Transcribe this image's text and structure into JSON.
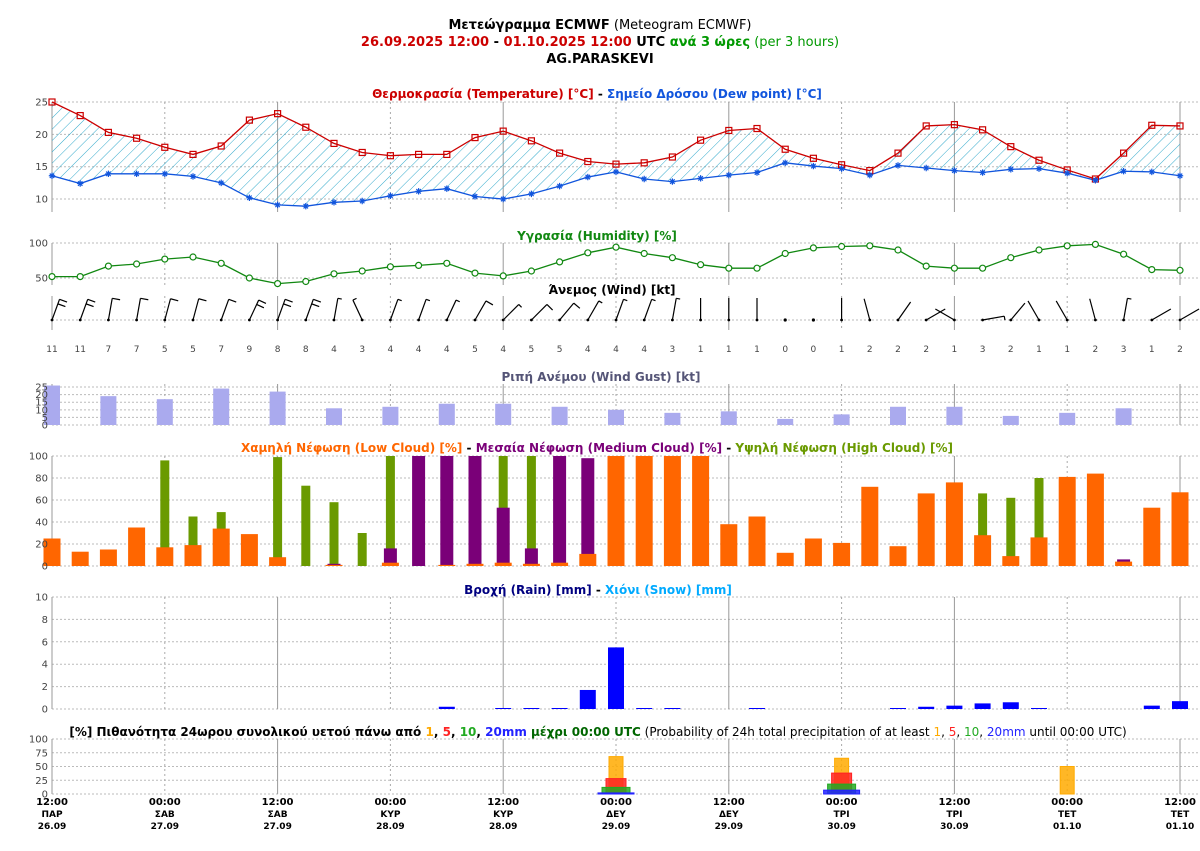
{
  "header": {
    "title_bold": "Μετεώγραμμα ECMWF",
    "title_rest": " (Meteogram ECMWF)",
    "date_start": "26.09.2025 12:00",
    "date_sep": " - ",
    "date_end": "01.10.2025 12:00",
    "utc": " UTC ",
    "step_bold": "ανά 3 ώρες",
    "step_rest": " (per 3 hours)",
    "location": "AG.PARASKEVI"
  },
  "panel_titles": {
    "temp_a": "Θερμοκρασία (Temperature) [°C]",
    "temp_sep": " - ",
    "temp_b": "Σημείο Δρόσου (Dew point) [°C]",
    "humidity": "Υγρασία (Humidity) [%]",
    "wind": "Άνεμος (Wind) [kt]",
    "gust": "Ριπή Ανέμου (Wind Gust) [kt]",
    "cloud_a": "Χαμηλή Νέφωση (Low Cloud) [%]",
    "cloud_sep": " - ",
    "cloud_b": "Μεσαία Νέφωση (Medium Cloud) [%]",
    "cloud_c": "Υψηλή Νέφωση (High Cloud) [%]",
    "rain_a": "Βροχή (Rain) [mm]",
    "rain_sep": " - ",
    "rain_b": "Χιόνι (Snow) [mm]",
    "prob_a": "[%] Πιθανότητα 24ωρου συνολικού υετού πάνω από ",
    "prob_t1": "1",
    "prob_t5": "5",
    "prob_t10": "10",
    "prob_t20": "20mm",
    "prob_b": " μέχρι 00:00 UTC",
    "prob_c": " (Probability of 24h total precipitation of at least ",
    "prob_d": " until 00:00 UTC)",
    "comma": ", "
  },
  "colors": {
    "temperature": "#cc0000",
    "dew_point": "#1155dd",
    "humidity": "#118811",
    "gust": "#aaaaee",
    "low_cloud": "#ff6600",
    "medium_cloud": "#7a0078",
    "high_cloud": "#6a9a00",
    "rain": "#0000ff",
    "snow": "#00aaff",
    "title_dates": "#cc0000",
    "title_step": "#009900",
    "title_gust": "#555577",
    "title_rain": "#000080",
    "prob_1": "#ffaa00",
    "prob_5": "#ff2222",
    "prob_10": "#22aa22",
    "prob_20": "#2222ff"
  },
  "chart_data": {
    "type": "line",
    "time_labels": [
      {
        "time": "12:00",
        "day": "ΠΑΡ",
        "date": "26.09"
      },
      {
        "time": "00:00",
        "day": "ΣΑΒ",
        "date": "27.09"
      },
      {
        "time": "12:00",
        "day": "ΣΑΒ",
        "date": "27.09"
      },
      {
        "time": "00:00",
        "day": "ΚΥΡ",
        "date": "28.09"
      },
      {
        "time": "12:00",
        "day": "ΚΥΡ",
        "date": "28.09"
      },
      {
        "time": "00:00",
        "day": "ΔΕΥ",
        "date": "29.09"
      },
      {
        "time": "12:00",
        "day": "ΔΕΥ",
        "date": "29.09"
      },
      {
        "time": "00:00",
        "day": "ΤΡΙ",
        "date": "30.09"
      },
      {
        "time": "12:00",
        "day": "ΤΡΙ",
        "date": "30.09"
      },
      {
        "time": "00:00",
        "day": "ΤΕΤ",
        "date": "01.10"
      },
      {
        "time": "12:00",
        "day": "ΤΕΤ",
        "date": "01.10"
      }
    ],
    "temperature": [
      25,
      22.9,
      20.3,
      19.4,
      18,
      16.9,
      18.2,
      22.2,
      23.2,
      21.1,
      18.6,
      17.2,
      16.7,
      16.9,
      16.9,
      19.5,
      20.5,
      19,
      17.1,
      15.8,
      15.4,
      15.6,
      16.5,
      19.1,
      20.6,
      20.9,
      17.7,
      16.3,
      15.3,
      14.4,
      17.1,
      21.3,
      21.5,
      20.7,
      18.1,
      16,
      14.5,
      13.1,
      17.1,
      21.4,
      21.3
    ],
    "dew_point": [
      13.6,
      12.4,
      13.9,
      13.9,
      13.9,
      13.5,
      12.5,
      10.2,
      9.1,
      8.9,
      9.5,
      9.7,
      10.5,
      11.2,
      11.6,
      10.4,
      10,
      10.8,
      12,
      13.4,
      14.2,
      13.1,
      12.7,
      13.2,
      13.7,
      14.1,
      15.6,
      15.1,
      14.7,
      13.7,
      15.2,
      14.8,
      14.4,
      14.1,
      14.6,
      14.7,
      14,
      12.9,
      14.3,
      14.2,
      13.6
    ],
    "humidity": [
      52,
      52,
      67,
      70,
      77,
      80,
      71,
      50,
      42,
      45,
      56,
      60,
      66,
      68,
      71,
      57,
      53,
      60,
      73,
      86,
      94,
      85,
      79,
      69,
      64,
      64,
      85,
      93,
      95,
      96,
      90,
      67,
      64,
      64,
      79,
      90,
      96,
      98,
      84,
      62,
      61
    ],
    "wind_speed": [
      11,
      11,
      7,
      7,
      5,
      5,
      7,
      9,
      8,
      8,
      4,
      3,
      4,
      4,
      4,
      5,
      4,
      5,
      5,
      4,
      4,
      4,
      3,
      1,
      1,
      1,
      0,
      0,
      1,
      2,
      2,
      2,
      1,
      3,
      2,
      1,
      1,
      2,
      3,
      1,
      2
    ],
    "wind_dir_deg": [
      20,
      20,
      10,
      10,
      15,
      15,
      20,
      25,
      20,
      20,
      10,
      335,
      20,
      20,
      25,
      30,
      45,
      45,
      40,
      30,
      20,
      20,
      10,
      0,
      0,
      0,
      0,
      0,
      0,
      345,
      35,
      60,
      300,
      80,
      40,
      330,
      330,
      345,
      10,
      60,
      60
    ],
    "gust": [
      26,
      null,
      19,
      null,
      17,
      null,
      24,
      null,
      22,
      null,
      11,
      null,
      12,
      null,
      14,
      null,
      14,
      null,
      12,
      null,
      10,
      null,
      8,
      null,
      9,
      null,
      4,
      null,
      7,
      null,
      12,
      null,
      12,
      null,
      6,
      null,
      8,
      null,
      11,
      null,
      null
    ],
    "low_cloud": [
      25,
      13,
      15,
      35,
      17,
      19,
      34,
      29,
      8,
      0,
      1,
      0,
      3,
      0,
      1,
      2,
      3,
      2,
      3,
      11,
      100,
      100,
      100,
      100,
      38,
      45,
      12,
      25,
      21,
      72,
      18,
      66,
      76,
      28,
      9,
      26,
      81,
      84,
      4,
      53,
      67
    ],
    "medium_cloud": [
      0,
      0,
      0,
      0,
      0,
      0,
      0,
      0,
      0,
      0,
      2,
      0,
      16,
      100,
      100,
      100,
      53,
      16,
      100,
      98,
      0,
      0,
      0,
      0,
      0,
      0,
      0,
      0,
      0,
      0,
      0,
      0,
      75,
      0,
      0,
      0,
      0,
      0,
      6,
      0,
      0
    ],
    "high_cloud": [
      0,
      0,
      0,
      0,
      96,
      45,
      49,
      0,
      99,
      73,
      58,
      30,
      100,
      0,
      0,
      0,
      100,
      100,
      0,
      0,
      0,
      0,
      0,
      0,
      0,
      0,
      0,
      0,
      0,
      0,
      0,
      0,
      0,
      66,
      62,
      80,
      0,
      0,
      0,
      0,
      0
    ],
    "rain": [
      0,
      0,
      0,
      0,
      0,
      0,
      0,
      0,
      0,
      0,
      0,
      0,
      0,
      0,
      0.2,
      0,
      0.05,
      0.05,
      0.05,
      1.7,
      5.5,
      0.05,
      0.05,
      0,
      0,
      0.05,
      0,
      0,
      0,
      0,
      0.05,
      0.2,
      0.3,
      0.5,
      0.6,
      0.05,
      0,
      0,
      0,
      0.3,
      0.7
    ],
    "snow": [
      0,
      0,
      0,
      0,
      0,
      0,
      0,
      0,
      0,
      0,
      0,
      0,
      0,
      0,
      0,
      0,
      0,
      0,
      0,
      0,
      0,
      0,
      0,
      0,
      0,
      0,
      0,
      0,
      0,
      0,
      0,
      0,
      0,
      0,
      0,
      0,
      0,
      0,
      0,
      0,
      0
    ],
    "precip_probability": [
      {
        "label_index": 5,
        "p1": 68,
        "p5": 28,
        "p10": 12,
        "p20": 2
      },
      {
        "label_index": 7,
        "p1": 65,
        "p5": 38,
        "p10": 18,
        "p20": 7
      },
      {
        "label_index": 9,
        "p1": 50,
        "p5": 0,
        "p10": 0,
        "p20": 0
      }
    ],
    "axes": {
      "temperature": {
        "ylim": [
          8,
          25
        ],
        "ticks": [
          10,
          15,
          20,
          25
        ]
      },
      "humidity": {
        "ylim": [
          40,
          100
        ],
        "ticks": [
          50,
          100
        ]
      },
      "gust": {
        "ylim": [
          0,
          27
        ],
        "ticks": [
          0,
          5,
          10,
          15,
          20,
          25
        ]
      },
      "cloud": {
        "ylim": [
          0,
          100
        ],
        "ticks": [
          0,
          20,
          40,
          60,
          80,
          100
        ]
      },
      "rain": {
        "ylim": [
          0,
          10
        ],
        "ticks": [
          0,
          2,
          4,
          6,
          8,
          10
        ]
      },
      "probability": {
        "ylim": [
          0,
          100
        ],
        "ticks": [
          0,
          25,
          50,
          75,
          100
        ]
      }
    },
    "grid": true
  }
}
